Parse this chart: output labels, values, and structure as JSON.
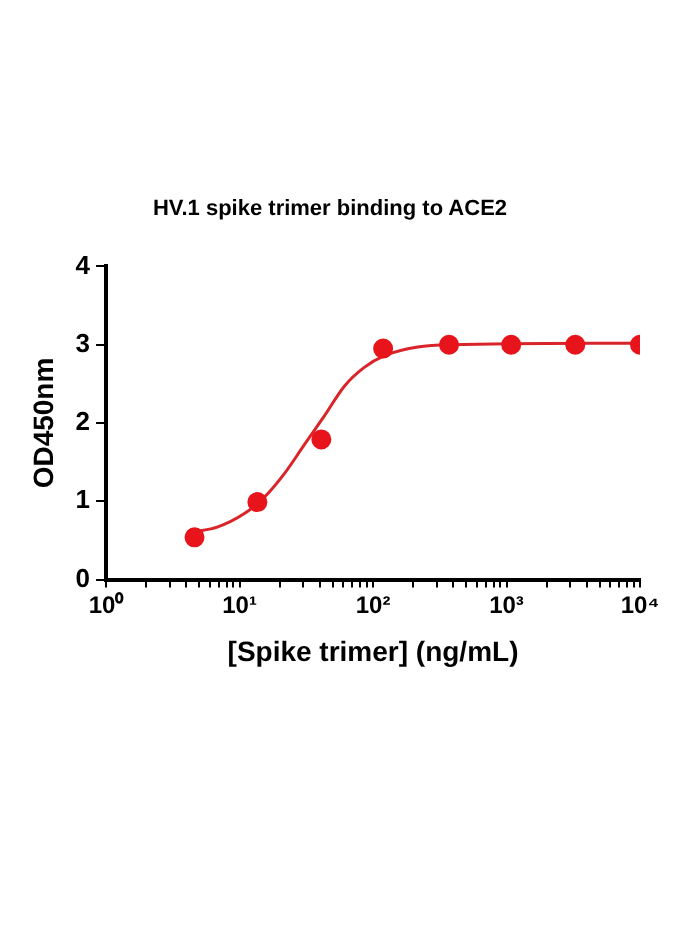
{
  "chart_data": {
    "type": "scatter",
    "title": "HV.1 spike trimer binding to ACE2",
    "xlabel": "[Spike trimer] (ng/mL)",
    "ylabel": "OD450nm",
    "log": "x",
    "grid": false,
    "legend": false,
    "marker": "circle",
    "xlim": [
      1,
      10000
    ],
    "ylim": [
      0,
      4
    ],
    "yticks": [
      0,
      1,
      2,
      3,
      4
    ],
    "xticks": [
      {
        "value": 1,
        "label": "10⁰"
      },
      {
        "value": 2,
        "label": null
      },
      {
        "value": 3,
        "label": null
      },
      {
        "value": 4,
        "label": null
      },
      {
        "value": 5,
        "label": null
      },
      {
        "value": 6,
        "label": null
      },
      {
        "value": 7,
        "label": null
      },
      {
        "value": 8,
        "label": null
      },
      {
        "value": 9,
        "label": null
      },
      {
        "value": 10,
        "label": "10¹"
      },
      {
        "value": 20,
        "label": null
      },
      {
        "value": 30,
        "label": null
      },
      {
        "value": 40,
        "label": null
      },
      {
        "value": 50,
        "label": null
      },
      {
        "value": 60,
        "label": null
      },
      {
        "value": 70,
        "label": null
      },
      {
        "value": 80,
        "label": null
      },
      {
        "value": 90,
        "label": null
      },
      {
        "value": 100,
        "label": "10²"
      },
      {
        "value": 200,
        "label": null
      },
      {
        "value": 300,
        "label": null
      },
      {
        "value": 400,
        "label": null
      },
      {
        "value": 500,
        "label": null
      },
      {
        "value": 600,
        "label": null
      },
      {
        "value": 700,
        "label": null
      },
      {
        "value": 800,
        "label": null
      },
      {
        "value": 900,
        "label": null
      },
      {
        "value": 1000,
        "label": "10³"
      },
      {
        "value": 2000,
        "label": null
      },
      {
        "value": 3000,
        "label": null
      },
      {
        "value": 4000,
        "label": null
      },
      {
        "value": 5000,
        "label": null
      },
      {
        "value": 6000,
        "label": null
      },
      {
        "value": 7000,
        "label": null
      },
      {
        "value": 8000,
        "label": null
      },
      {
        "value": 9000,
        "label": null
      },
      {
        "value": 10000,
        "label": "10⁴"
      }
    ],
    "series": [
      {
        "type": "line",
        "marker": "none",
        "color": "#d9242a",
        "x": [
          4.6,
          6.8,
          10.8,
          15.3,
          21.6,
          30.5,
          43.2,
          61,
          86,
          122,
          216,
          385,
          10000
        ],
        "values": [
          0.61,
          0.67,
          0.84,
          1.05,
          1.35,
          1.72,
          2.09,
          2.47,
          2.71,
          2.86,
          2.97,
          3.0,
          3.02
        ]
      },
      {
        "color": "#e8141c",
        "x": [
          4.6,
          13.6,
          41,
          119,
          371,
          1084,
          3275,
          10000
        ],
        "values": [
          0.54,
          0.99,
          1.79,
          2.95,
          3.0,
          3.0,
          3.0,
          3.0
        ]
      }
    ]
  }
}
